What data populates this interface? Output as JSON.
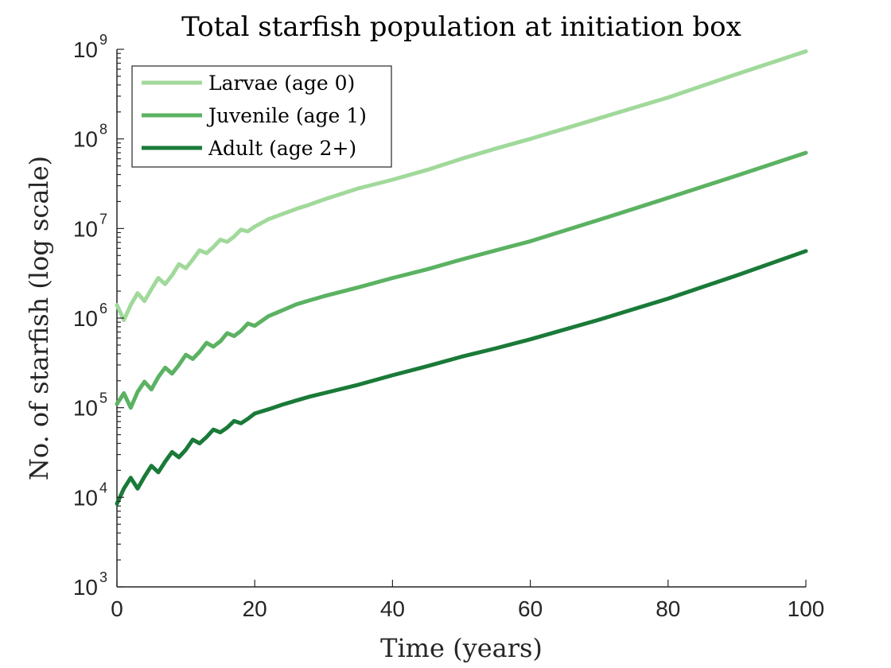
{
  "chart_data": {
    "type": "line",
    "title": "Total starfish population at initiation box",
    "xlabel": "Time (years)",
    "ylabel": "No. of starfish (log scale)",
    "xlim": [
      0,
      100
    ],
    "ylim": [
      1000,
      1000000000
    ],
    "y_scale": "log",
    "grid": false,
    "legend_position": "top-left",
    "x_ticks": [
      "0",
      "20",
      "40",
      "60",
      "80",
      "100"
    ],
    "y_ticks": [
      {
        "base": "10",
        "exp": "3",
        "value": 1000
      },
      {
        "base": "10",
        "exp": "4",
        "value": 10000
      },
      {
        "base": "10",
        "exp": "5",
        "value": 100000
      },
      {
        "base": "10",
        "exp": "6",
        "value": 1000000
      },
      {
        "base": "10",
        "exp": "7",
        "value": 10000000
      },
      {
        "base": "10",
        "exp": "8",
        "value": 100000000
      },
      {
        "base": "10",
        "exp": "9",
        "value": 1000000000
      }
    ],
    "series": [
      {
        "name": "Larvae (age 0)",
        "color": "#a1d99b",
        "x": [
          0,
          1,
          2,
          3,
          4,
          5,
          6,
          7,
          8,
          9,
          10,
          11,
          12,
          13,
          14,
          15,
          16,
          17,
          18,
          19,
          20,
          22,
          24,
          26,
          28,
          30,
          35,
          40,
          45,
          50,
          55,
          60,
          70,
          80,
          90,
          100
        ],
        "y": [
          1400000,
          950000,
          1400000,
          1900000,
          1550000,
          2100000,
          2800000,
          2400000,
          3000000,
          4000000,
          3600000,
          4500000,
          5700000,
          5300000,
          6200000,
          7500000,
          7100000,
          8100000,
          9700000,
          9300000,
          10500000,
          12700000,
          14500000,
          16500000,
          18500000,
          21000000,
          28000000,
          35000000,
          45000000,
          60000000,
          78000000,
          100000000,
          170000000,
          290000000,
          530000000,
          950000000
        ]
      },
      {
        "name": "Juvenile (age 1)",
        "color": "#5bb262",
        "x": [
          0,
          1,
          2,
          3,
          4,
          5,
          6,
          7,
          8,
          9,
          10,
          11,
          12,
          13,
          14,
          15,
          16,
          17,
          18,
          19,
          20,
          22,
          24,
          26,
          28,
          30,
          35,
          40,
          45,
          50,
          55,
          60,
          70,
          80,
          90,
          100
        ],
        "y": [
          110000,
          145000,
          100000,
          150000,
          195000,
          160000,
          220000,
          280000,
          240000,
          300000,
          390000,
          350000,
          420000,
          530000,
          480000,
          550000,
          680000,
          630000,
          720000,
          870000,
          820000,
          1050000,
          1220000,
          1420000,
          1580000,
          1750000,
          2200000,
          2800000,
          3500000,
          4500000,
          5700000,
          7200000,
          12500000,
          22000000,
          39000000,
          70000000
        ]
      },
      {
        "name": "Adult (age 2+)",
        "color": "#1a7a38",
        "x": [
          0,
          1,
          2,
          3,
          4,
          5,
          6,
          7,
          8,
          9,
          10,
          11,
          12,
          13,
          14,
          15,
          16,
          17,
          18,
          19,
          20,
          22,
          24,
          26,
          28,
          30,
          35,
          40,
          45,
          50,
          55,
          60,
          70,
          80,
          90,
          100
        ],
        "y": [
          8500,
          12500,
          16500,
          12500,
          17000,
          22500,
          19000,
          25000,
          32000,
          28000,
          34000,
          44000,
          40000,
          47000,
          57000,
          53000,
          60000,
          71000,
          67000,
          75000,
          86000,
          96000,
          108000,
          120000,
          133000,
          145000,
          180000,
          230000,
          290000,
          370000,
          460000,
          580000,
          960000,
          1650000,
          3000000,
          5600000
        ]
      }
    ]
  }
}
